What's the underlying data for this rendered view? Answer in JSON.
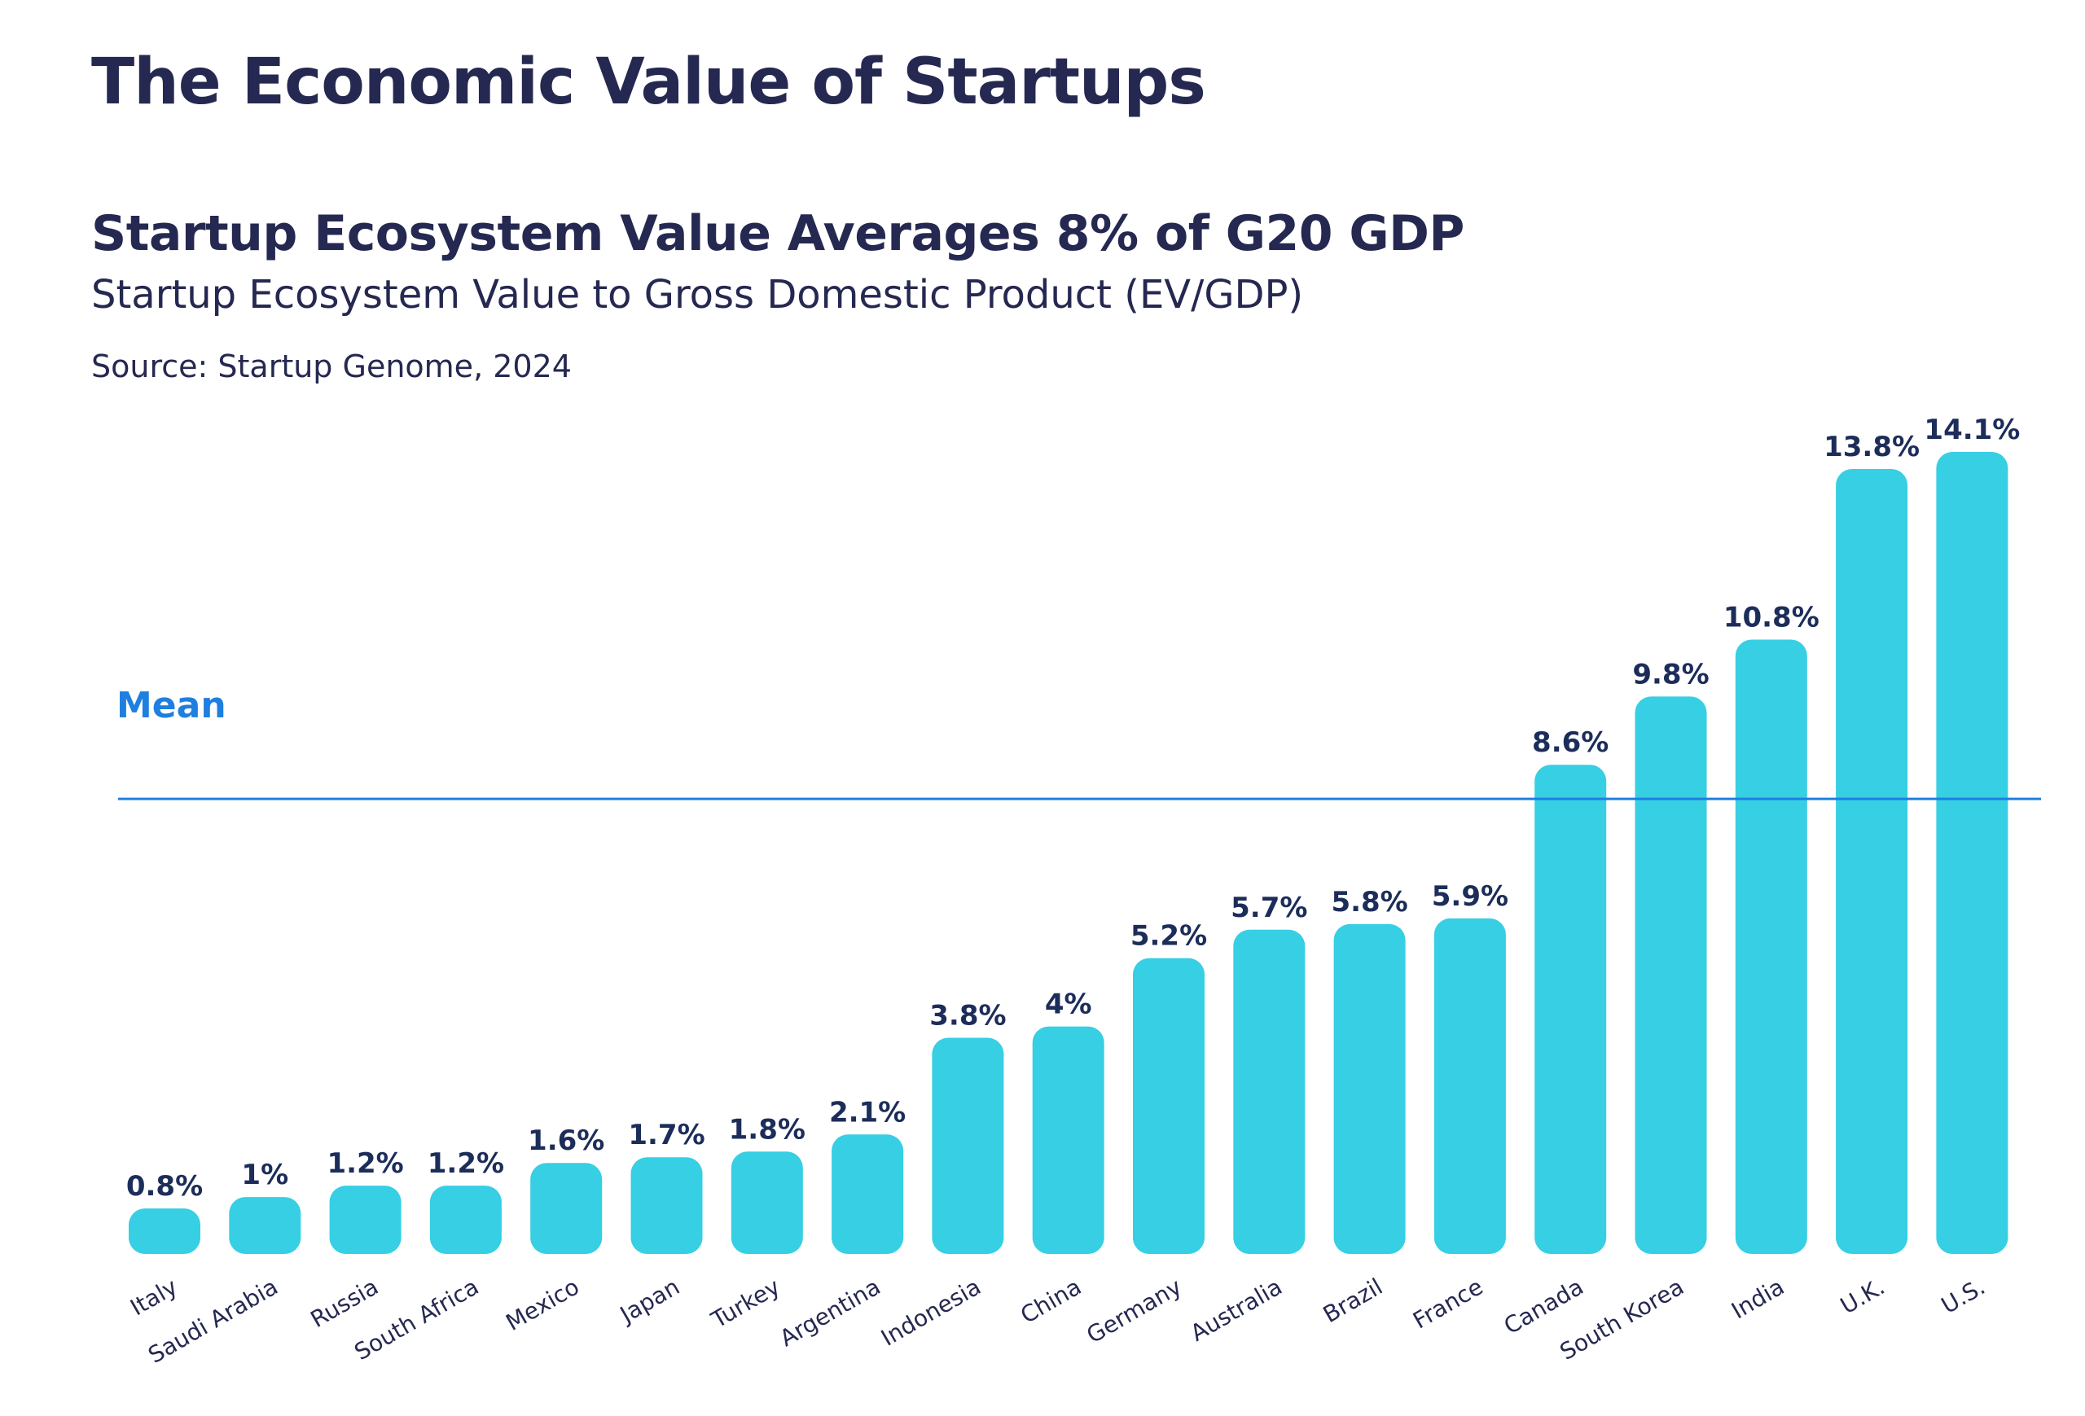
{
  "header": {
    "title": "The Economic Value of Startups",
    "subtitle": "Startup Ecosystem Value Averages 8% of G20 GDP",
    "description": "Startup Ecosystem Value to Gross Domestic Product (EV/GDP)",
    "source": "Source: Startup Genome, 2024"
  },
  "colors": {
    "bar": "#36CFE3",
    "value_label": "#1C2D5A",
    "mean_line": "#1E7FE0",
    "axis_label": "#252850"
  },
  "chart_data": {
    "type": "bar",
    "title": "Startup Ecosystem Value Averages 8% of G20 GDP",
    "xlabel": "",
    "ylabel": "Startup Ecosystem Value to Gross Domestic Product (EV/GDP)",
    "unit": "%",
    "ylim": [
      0,
      14.1
    ],
    "grid": false,
    "categories": [
      "Italy",
      "Saudi Arabia",
      "Russia",
      "South Africa",
      "Mexico",
      "Japan",
      "Turkey",
      "Argentina",
      "Indonesia",
      "China",
      "Germany",
      "Australia",
      "Brazil",
      "France",
      "Canada",
      "South Korea",
      "India",
      "U.K.",
      "U.S."
    ],
    "values": [
      0.8,
      1,
      1.2,
      1.2,
      1.6,
      1.7,
      1.8,
      2.1,
      3.8,
      4,
      5.2,
      5.7,
      5.8,
      5.9,
      8.6,
      9.8,
      10.8,
      13.8,
      14.1
    ],
    "value_labels": [
      "0.8%",
      "1%",
      "1.2%",
      "1.2%",
      "1.6%",
      "1.7%",
      "1.8%",
      "2.1%",
      "3.8%",
      "4%",
      "5.2%",
      "5.7%",
      "5.8%",
      "5.9%",
      "8.6%",
      "9.8%",
      "10.8%",
      "13.8%",
      "14.1%"
    ],
    "reference_line": {
      "label": "Mean",
      "value": 8
    }
  }
}
